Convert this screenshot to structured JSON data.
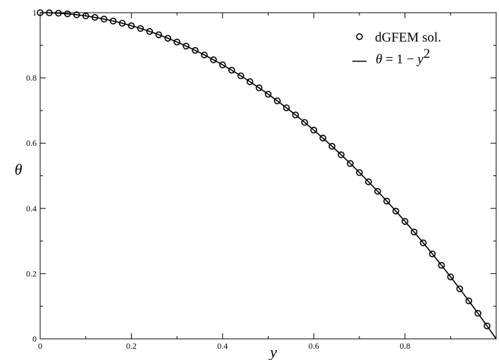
{
  "chart_data": {
    "type": "scatter",
    "title": "",
    "xlabel": "y",
    "ylabel": "θ",
    "xlim": [
      0,
      1
    ],
    "ylim": [
      0,
      1
    ],
    "x_ticks": [
      "0",
      "0.2",
      "0.4",
      "0.6",
      "0.8"
    ],
    "y_ticks": [
      "0",
      "0.2",
      "0.4",
      "0.6",
      "0.8",
      "1"
    ],
    "grid": false,
    "legend_position": "top-right",
    "series": [
      {
        "name": "dGFEM sol.",
        "style": "open-circle-markers",
        "color": "#000000",
        "x": [
          0.0,
          0.02,
          0.04,
          0.06,
          0.08,
          0.1,
          0.12,
          0.14,
          0.16,
          0.18,
          0.2,
          0.22,
          0.24,
          0.26,
          0.28,
          0.3,
          0.32,
          0.34,
          0.36,
          0.38,
          0.4,
          0.42,
          0.44,
          0.46,
          0.48,
          0.5,
          0.52,
          0.54,
          0.56,
          0.58,
          0.6,
          0.62,
          0.64,
          0.66,
          0.68,
          0.7,
          0.72,
          0.74,
          0.76,
          0.78,
          0.8,
          0.82,
          0.84,
          0.86,
          0.88,
          0.9,
          0.92,
          0.94,
          0.96,
          0.98
        ],
        "y": [
          1.0,
          0.9996,
          0.9984,
          0.9964,
          0.9936,
          0.99,
          0.9856,
          0.9804,
          0.9744,
          0.9676,
          0.96,
          0.9516,
          0.9424,
          0.9324,
          0.9216,
          0.91,
          0.8976,
          0.8844,
          0.8704,
          0.8556,
          0.84,
          0.8236,
          0.8064,
          0.7884,
          0.7696,
          0.75,
          0.7296,
          0.7084,
          0.6864,
          0.6636,
          0.64,
          0.6156,
          0.5904,
          0.5644,
          0.5376,
          0.51,
          0.4816,
          0.4524,
          0.4224,
          0.3916,
          0.36,
          0.3276,
          0.2944,
          0.2604,
          0.2256,
          0.19,
          0.1536,
          0.1164,
          0.0784,
          0.0396
        ]
      },
      {
        "name": "θ = 1 − y²",
        "style": "solid-line",
        "color": "#000000",
        "function": "1 - y^2",
        "x": [
          0.0,
          0.1,
          0.2,
          0.3,
          0.4,
          0.5,
          0.6,
          0.7,
          0.8,
          0.9,
          1.0
        ],
        "y": [
          1.0,
          0.99,
          0.96,
          0.91,
          0.84,
          0.75,
          0.64,
          0.51,
          0.36,
          0.19,
          0.0
        ]
      }
    ]
  },
  "legend": {
    "marker_label": "dGFEM sol.",
    "line_label_lhs": "θ",
    "line_label_eq": " = 1 − ",
    "line_label_var": "y",
    "line_label_exp": "2"
  }
}
